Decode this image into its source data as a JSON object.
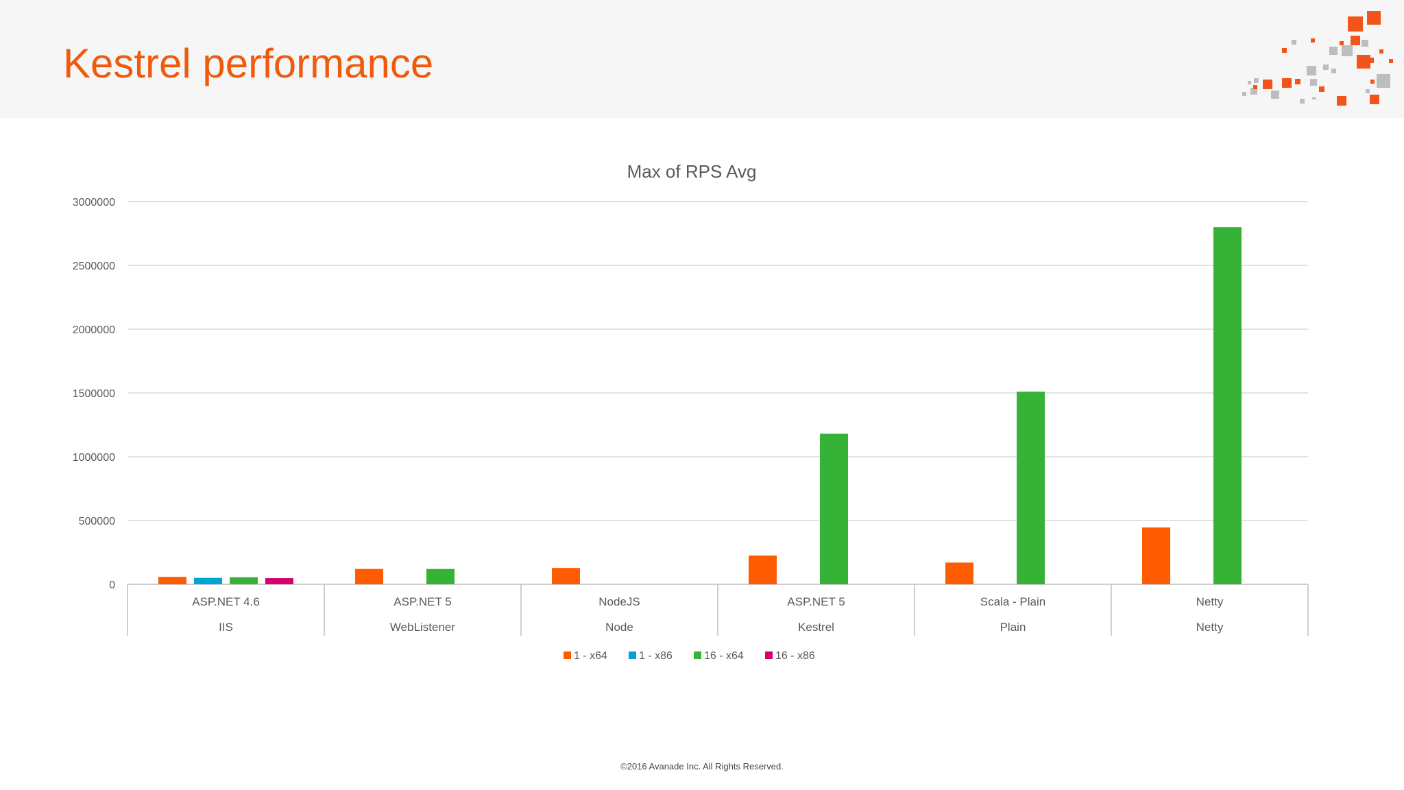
{
  "slide": {
    "title": "Kestrel performance",
    "footer": "©2016 Avanade Inc. All Rights Reserved."
  },
  "colors": {
    "title": "#f05a0a",
    "header_background": "#f6f6f6",
    "series": [
      "#ff5b00",
      "#00a2d7",
      "#36b336",
      "#d6006f"
    ],
    "logo_orange": "#f2541b",
    "logo_gray": "#b9b9b9"
  },
  "chart_data": {
    "type": "bar",
    "title": "Max of RPS Avg",
    "xlabel": "",
    "ylabel": "",
    "ylim": [
      0,
      3000000
    ],
    "yticks": [
      "0",
      "500000",
      "1000000",
      "1500000",
      "2000000",
      "2500000",
      "3000000"
    ],
    "categories": [
      {
        "label": "ASP.NET 4.6",
        "group": "IIS"
      },
      {
        "label": "ASP.NET 5",
        "group": "WebListener"
      },
      {
        "label": "NodeJS",
        "group": "Node"
      },
      {
        "label": "ASP.NET 5",
        "group": "Kestrel"
      },
      {
        "label": "Scala - Plain",
        "group": "Plain"
      },
      {
        "label": "Netty",
        "group": "Netty"
      }
    ],
    "series": [
      {
        "name": "1 - x64",
        "values": [
          58000,
          120000,
          128000,
          225000,
          170000,
          445000
        ]
      },
      {
        "name": "1 - x86",
        "values": [
          50000,
          null,
          null,
          null,
          null,
          null
        ]
      },
      {
        "name": "16 - x64",
        "values": [
          55000,
          120000,
          null,
          1180000,
          1510000,
          2800000
        ]
      },
      {
        "name": "16 - x86",
        "values": [
          48000,
          null,
          null,
          null,
          null,
          null
        ]
      }
    ],
    "grid": true,
    "legend": "bottom"
  }
}
